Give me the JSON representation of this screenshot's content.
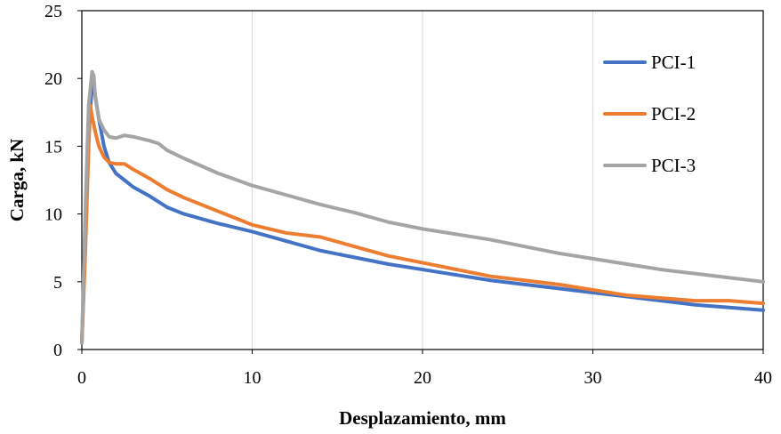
{
  "chart_data": {
    "type": "line",
    "title": "",
    "xlabel": "Desplazamiento, mm",
    "ylabel": "Carga, kN",
    "xlim": [
      0,
      40
    ],
    "ylim": [
      0,
      25
    ],
    "xticks": [
      0,
      10,
      20,
      30,
      40
    ],
    "yticks": [
      0,
      5,
      10,
      15,
      20,
      25
    ],
    "grid": "vertical",
    "legend_position": "right",
    "series": [
      {
        "name": "PCI-1",
        "color": "#4472C4",
        "x": [
          0,
          0.2,
          0.4,
          0.6,
          0.75,
          1.0,
          1.3,
          1.6,
          2,
          2.5,
          3,
          4,
          5,
          6,
          8,
          10,
          12,
          14,
          16,
          18,
          20,
          22,
          24,
          26,
          28,
          30,
          32,
          34,
          36,
          38,
          40
        ],
        "y": [
          0.5,
          8,
          16,
          19.5,
          19.0,
          17,
          15,
          13.8,
          13.0,
          12.5,
          12.0,
          11.3,
          10.5,
          10.0,
          9.3,
          8.7,
          8.0,
          7.3,
          6.8,
          6.3,
          5.9,
          5.5,
          5.1,
          4.8,
          4.5,
          4.2,
          3.9,
          3.6,
          3.3,
          3.1,
          2.9
        ]
      },
      {
        "name": "PCI-2",
        "color": "#ED7D31",
        "x": [
          0,
          0.2,
          0.4,
          0.5,
          0.6,
          0.8,
          1.0,
          1.3,
          1.6,
          2,
          2.5,
          3,
          4,
          5,
          6,
          8,
          10,
          12,
          14,
          16,
          18,
          20,
          22,
          24,
          26,
          28,
          30,
          32,
          34,
          36,
          38,
          40
        ],
        "y": [
          0.5,
          7,
          15,
          18.0,
          17.2,
          16,
          15,
          14.2,
          13.8,
          13.7,
          13.7,
          13.3,
          12.6,
          11.8,
          11.2,
          10.2,
          9.2,
          8.6,
          8.3,
          7.6,
          6.9,
          6.4,
          5.9,
          5.4,
          5.1,
          4.8,
          4.4,
          4.0,
          3.8,
          3.6,
          3.6,
          3.4
        ]
      },
      {
        "name": "PCI-3",
        "color": "#A5A5A5",
        "x": [
          0,
          0.2,
          0.4,
          0.6,
          0.7,
          0.8,
          1.0,
          1.3,
          1.6,
          2,
          2.5,
          3,
          4,
          4.5,
          5,
          6,
          8,
          10,
          12,
          14,
          16,
          18,
          20,
          22,
          24,
          26,
          28,
          30,
          32,
          34,
          36,
          38,
          40
        ],
        "y": [
          0.5,
          10,
          18,
          20.5,
          20.2,
          18.5,
          17.0,
          16.2,
          15.7,
          15.6,
          15.8,
          15.7,
          15.4,
          15.2,
          14.7,
          14.1,
          13.0,
          12.1,
          11.4,
          10.7,
          10.1,
          9.4,
          8.9,
          8.5,
          8.1,
          7.6,
          7.1,
          6.7,
          6.3,
          5.9,
          5.6,
          5.3,
          5.0
        ]
      }
    ]
  }
}
